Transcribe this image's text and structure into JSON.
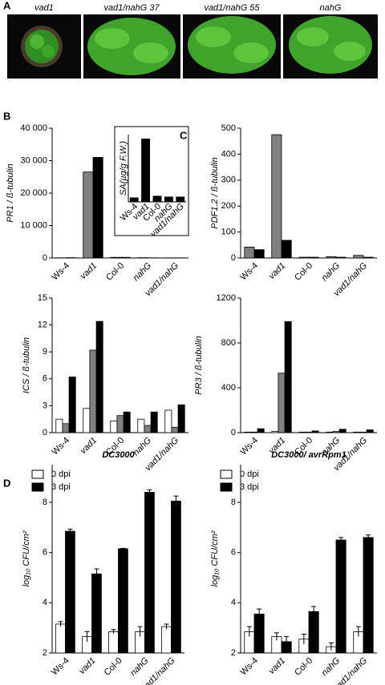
{
  "panel_letters": [
    "A",
    "B",
    "C",
    "D"
  ],
  "photo_labels": [
    "vad1",
    "vad1/nahG 37",
    "vad1/nahG 55",
    "nahG"
  ],
  "chart_data": [
    {
      "type": "bar",
      "ylabel": "PR1 / ß-tubulin",
      "categories": [
        "Ws-4",
        "vad1",
        "Col-0",
        "nahG",
        "vad1/nahG"
      ],
      "series": [
        {
          "color": "#808080",
          "values": [
            50,
            26500,
            200,
            100,
            50
          ]
        },
        {
          "color": "#000000",
          "values": [
            100,
            31000,
            200,
            50,
            50
          ]
        }
      ],
      "ylim": [
        0,
        40000
      ],
      "yticks": [
        0,
        {
          "value": 10000,
          "label": "10 000"
        },
        {
          "value": 20000,
          "label": "20 000"
        },
        {
          "value": 30000,
          "label": "30 000"
        },
        {
          "value": 40000,
          "label": "40 000"
        }
      ]
    },
    {
      "type": "bar",
      "ylabel": "SA(µg/g F.W.)",
      "categories": [
        "Ws-4",
        "vad1",
        "Col-0",
        "nahG",
        "vad1/nahG"
      ],
      "series": [
        {
          "color": "#000000",
          "values": [
            0.5,
            7.5,
            0.7,
            0.6,
            0.6
          ]
        }
      ],
      "ylim": [
        0,
        8
      ]
    },
    {
      "type": "bar",
      "ylabel": "PDF1.2 / ß-tubulin",
      "categories": [
        "Ws-4",
        "vad1",
        "Col-0",
        "nahG",
        "vad1/nahG"
      ],
      "series": [
        {
          "color": "#808080",
          "values": [
            42,
            475,
            3,
            5,
            10
          ]
        },
        {
          "color": "#000000",
          "values": [
            32,
            68,
            3,
            3,
            3
          ]
        }
      ],
      "ylim": [
        0,
        500
      ],
      "yticks": [
        0,
        100,
        200,
        300,
        400,
        500
      ]
    },
    {
      "type": "bar",
      "ylabel": "ICS / ß-tubulin",
      "categories": [
        "Ws-4",
        "vad1",
        "Col-0",
        "nahG",
        "vad1/nahG"
      ],
      "series": [
        {
          "color": "#ffffff",
          "values": [
            1.5,
            2.7,
            1.3,
            1.5,
            2.5
          ]
        },
        {
          "color": "#808080",
          "values": [
            1.0,
            9.2,
            1.9,
            0.8,
            0.6
          ]
        },
        {
          "color": "#000000",
          "values": [
            6.2,
            12.4,
            2.3,
            2.3,
            3.1
          ]
        }
      ],
      "ylim": [
        0,
        15
      ],
      "yticks": [
        0,
        3,
        6,
        9,
        12,
        15
      ]
    },
    {
      "type": "bar",
      "ylabel": "PR3 / ß-tubulin",
      "categories": [
        "Ws-4",
        "vad1",
        "Col-0",
        "nahG",
        "vad1/nahG"
      ],
      "series": [
        {
          "color": "#ffffff",
          "values": [
            5,
            10,
            5,
            5,
            5
          ]
        },
        {
          "color": "#808080",
          "values": [
            5,
            530,
            5,
            10,
            5
          ]
        },
        {
          "color": "#000000",
          "values": [
            35,
            990,
            15,
            30,
            25
          ]
        }
      ],
      "ylim": [
        0,
        1200
      ],
      "yticks": [
        0,
        400,
        800,
        1200
      ]
    },
    {
      "type": "bar",
      "title": "DC3000",
      "ylabel": "log₁₀ CFU/cm²",
      "legend": "upper left",
      "categories": [
        "Ws-4",
        "vad1",
        "Col-0",
        "nahG",
        "vad1/nahG"
      ],
      "series": [
        {
          "name": "0 dpi",
          "color": "#ffffff",
          "values": [
            3.15,
            2.65,
            2.85,
            2.85,
            3.05
          ],
          "errors": [
            0.1,
            0.2,
            0.08,
            0.2,
            0.1
          ]
        },
        {
          "name": "3 dpi",
          "color": "#000000",
          "values": [
            6.85,
            5.15,
            6.15,
            8.4,
            8.05
          ],
          "errors": [
            0.08,
            0.2,
            0.02,
            0.1,
            0.2
          ]
        }
      ],
      "ylim": [
        2,
        9.5
      ],
      "yticks": [
        2,
        4,
        6,
        8
      ]
    },
    {
      "type": "bar",
      "title": "DC3000/ avrRpm1",
      "ylabel": "log₁₀ CFU/cm²",
      "legend": "upper left",
      "categories": [
        "Ws-4",
        "vad1",
        "Col-0",
        "nahG",
        "vad1/nahG"
      ],
      "series": [
        {
          "name": "0 dpi",
          "color": "#ffffff",
          "values": [
            2.85,
            2.65,
            2.55,
            2.25,
            2.85
          ],
          "errors": [
            0.2,
            0.15,
            0.2,
            0.15,
            0.2
          ]
        },
        {
          "name": "3 dpi",
          "color": "#000000",
          "values": [
            3.55,
            2.45,
            3.65,
            6.5,
            6.6
          ],
          "errors": [
            0.2,
            0.2,
            0.2,
            0.1,
            0.1
          ]
        }
      ],
      "ylim": [
        2,
        9.5
      ],
      "yticks": [
        2,
        4,
        6,
        8
      ]
    }
  ]
}
